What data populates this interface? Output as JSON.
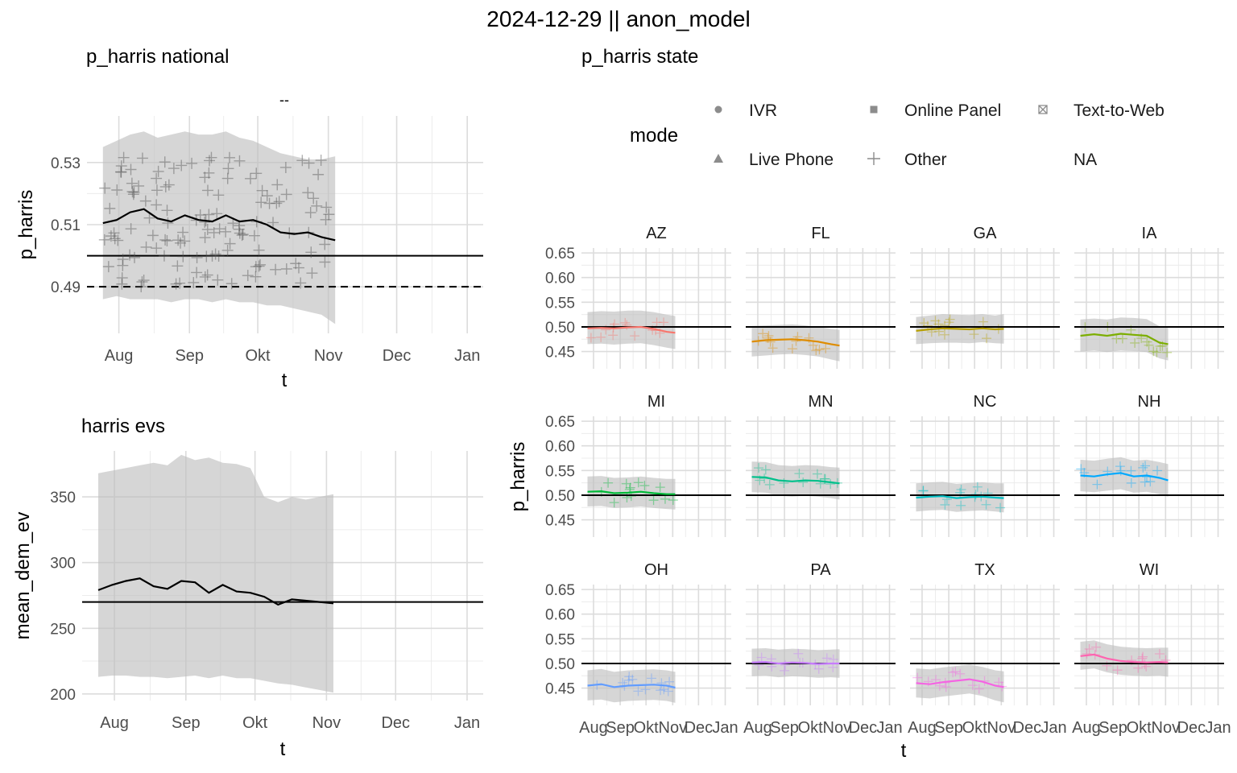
{
  "title": "2024-12-29 || anon_model",
  "national": {
    "title": "p_harris national",
    "facet_label": "--",
    "xlabel": "t",
    "ylabel": "p_harris",
    "x_ticks": [
      "Aug",
      "Sep",
      "Okt",
      "Nov",
      "Dec",
      "Jan"
    ],
    "y_ticks": [
      "0.49",
      "0.51",
      "0.53"
    ]
  },
  "evs": {
    "title": "harris evs",
    "xlabel": "t",
    "ylabel": "mean_dem_ev",
    "x_ticks": [
      "Aug",
      "Sep",
      "Okt",
      "Nov",
      "Dec",
      "Jan"
    ],
    "y_ticks": [
      "200",
      "250",
      "300",
      "350"
    ]
  },
  "state": {
    "title": "p_harris state",
    "xlabel": "t",
    "ylabel": "p_harris",
    "x_ticks": [
      "Aug",
      "Sep",
      "Okt",
      "Nov",
      "Dec",
      "Jan"
    ],
    "y_ticks": [
      "0.45",
      "0.50",
      "0.55",
      "0.60",
      "0.65"
    ]
  },
  "legend": {
    "title": "mode",
    "items": [
      {
        "label": "IVR",
        "shape": "circle"
      },
      {
        "label": "Online Panel",
        "shape": "square"
      },
      {
        "label": "Text-to-Web",
        "shape": "boxx"
      },
      {
        "label": "Live Phone",
        "shape": "triangle"
      },
      {
        "label": "Other",
        "shape": "plus"
      },
      {
        "label": "NA",
        "shape": "none"
      }
    ]
  },
  "chart_data": [
    {
      "type": "line",
      "id": "national",
      "x_dates": [
        "2024-07-25",
        "2024-07-31",
        "2024-08-06",
        "2024-08-12",
        "2024-08-18",
        "2024-08-24",
        "2024-08-30",
        "2024-09-05",
        "2024-09-11",
        "2024-09-17",
        "2024-09-23",
        "2024-09-29",
        "2024-10-05",
        "2024-10-11",
        "2024-10-17",
        "2024-10-23",
        "2024-10-29",
        "2024-11-04"
      ],
      "series": [
        {
          "values": [
            0.5105,
            0.5115,
            0.514,
            0.515,
            0.512,
            0.511,
            0.513,
            0.5115,
            0.511,
            0.513,
            0.511,
            0.5115,
            0.51,
            0.5075,
            0.507,
            0.5075,
            0.506,
            0.505
          ]
        }
      ],
      "ribbon_lower": [
        0.486,
        0.487,
        0.486,
        0.486,
        0.486,
        0.485,
        0.486,
        0.486,
        0.485,
        0.486,
        0.485,
        0.485,
        0.484,
        0.484,
        0.483,
        0.482,
        0.481,
        0.478
      ],
      "ribbon_upper": [
        0.535,
        0.537,
        0.539,
        0.54,
        0.538,
        0.539,
        0.54,
        0.539,
        0.539,
        0.54,
        0.538,
        0.537,
        0.535,
        0.533,
        0.532,
        0.531,
        0.531,
        0.532
      ],
      "hlines": [
        {
          "y": 0.5,
          "style": "solid"
        },
        {
          "y": 0.49,
          "style": "dashed"
        }
      ],
      "xlim": [
        "2024-07-18",
        "2025-01-08"
      ],
      "ylim": [
        0.475,
        0.545
      ]
    },
    {
      "type": "line",
      "id": "evs",
      "x_dates": [
        "2024-07-25",
        "2024-07-31",
        "2024-08-06",
        "2024-08-12",
        "2024-08-18",
        "2024-08-24",
        "2024-08-30",
        "2024-09-05",
        "2024-09-11",
        "2024-09-17",
        "2024-09-23",
        "2024-09-29",
        "2024-10-05",
        "2024-10-11",
        "2024-10-17",
        "2024-10-23",
        "2024-10-29",
        "2024-11-04"
      ],
      "series": [
        {
          "values": [
            279,
            283,
            286,
            288,
            282,
            280,
            286,
            285,
            277,
            283,
            278,
            277,
            274,
            268,
            272,
            271,
            270,
            269
          ]
        }
      ],
      "ribbon_lower": [
        213,
        214,
        214,
        213,
        213,
        212,
        213,
        214,
        212,
        214,
        212,
        212,
        210,
        208,
        207,
        205,
        203,
        201
      ],
      "ribbon_upper": [
        368,
        370,
        372,
        374,
        376,
        374,
        382,
        378,
        380,
        376,
        375,
        372,
        350,
        346,
        350,
        348,
        350,
        352
      ],
      "hlines": [
        {
          "y": 270,
          "style": "solid"
        }
      ],
      "xlim": [
        "2024-07-18",
        "2025-01-08"
      ],
      "ylim": [
        195,
        385
      ]
    },
    {
      "type": "line",
      "id": "state",
      "facets": [
        {
          "state": "AZ",
          "color": "#F8766D",
          "x_dates": [
            "2024-07-25",
            "2024-08-10",
            "2024-08-25",
            "2024-09-10",
            "2024-09-25",
            "2024-10-10",
            "2024-10-25",
            "2024-11-04"
          ],
          "values": [
            0.497,
            0.498,
            0.497,
            0.499,
            0.5,
            0.496,
            0.49,
            0.488
          ],
          "lower": [
            0.465,
            0.466,
            0.464,
            0.466,
            0.467,
            0.463,
            0.458,
            0.455
          ],
          "upper": [
            0.53,
            0.532,
            0.531,
            0.533,
            0.533,
            0.53,
            0.525,
            0.522
          ]
        },
        {
          "state": "FL",
          "color": "#DE8C00",
          "x_dates": [
            "2024-07-25",
            "2024-08-10",
            "2024-08-25",
            "2024-09-10",
            "2024-09-25",
            "2024-10-10",
            "2024-10-25",
            "2024-11-04"
          ],
          "values": [
            0.47,
            0.473,
            0.474,
            0.475,
            0.473,
            0.47,
            0.465,
            0.462
          ],
          "lower": [
            0.44,
            0.442,
            0.444,
            0.445,
            0.443,
            0.44,
            0.434,
            0.43
          ],
          "upper": [
            0.502,
            0.503,
            0.504,
            0.505,
            0.503,
            0.5,
            0.496,
            0.494
          ]
        },
        {
          "state": "GA",
          "color": "#B79F00",
          "x_dates": [
            "2024-07-25",
            "2024-08-10",
            "2024-08-25",
            "2024-09-10",
            "2024-09-25",
            "2024-10-10",
            "2024-10-25",
            "2024-11-04"
          ],
          "values": [
            0.492,
            0.495,
            0.497,
            0.496,
            0.495,
            0.497,
            0.495,
            0.496
          ],
          "lower": [
            0.465,
            0.467,
            0.468,
            0.468,
            0.467,
            0.469,
            0.467,
            0.466
          ],
          "upper": [
            0.52,
            0.523,
            0.526,
            0.525,
            0.524,
            0.526,
            0.523,
            0.526
          ]
        },
        {
          "state": "IA",
          "color": "#7CAE00",
          "x_dates": [
            "2024-07-25",
            "2024-08-10",
            "2024-08-25",
            "2024-09-10",
            "2024-09-25",
            "2024-10-10",
            "2024-10-25",
            "2024-11-04"
          ],
          "values": [
            0.482,
            0.485,
            0.482,
            0.486,
            0.484,
            0.482,
            0.468,
            0.465
          ],
          "lower": [
            0.45,
            0.452,
            0.449,
            0.452,
            0.451,
            0.449,
            0.436,
            0.432
          ],
          "upper": [
            0.515,
            0.517,
            0.515,
            0.519,
            0.518,
            0.516,
            0.501,
            0.498
          ]
        },
        {
          "state": "MI",
          "color": "#00BA38",
          "x_dates": [
            "2024-07-25",
            "2024-08-10",
            "2024-08-25",
            "2024-09-10",
            "2024-09-25",
            "2024-10-10",
            "2024-10-25",
            "2024-11-04"
          ],
          "values": [
            0.507,
            0.508,
            0.504,
            0.505,
            0.507,
            0.504,
            0.502,
            0.502
          ],
          "lower": [
            0.477,
            0.478,
            0.474,
            0.475,
            0.477,
            0.474,
            0.472,
            0.471
          ],
          "upper": [
            0.538,
            0.539,
            0.535,
            0.536,
            0.538,
            0.535,
            0.533,
            0.533
          ]
        },
        {
          "state": "MN",
          "color": "#00C08B",
          "x_dates": [
            "2024-07-25",
            "2024-08-10",
            "2024-08-25",
            "2024-09-10",
            "2024-09-25",
            "2024-10-10",
            "2024-10-25",
            "2024-11-04"
          ],
          "values": [
            0.537,
            0.536,
            0.53,
            0.528,
            0.53,
            0.529,
            0.526,
            0.524
          ],
          "lower": [
            0.506,
            0.505,
            0.499,
            0.497,
            0.499,
            0.497,
            0.494,
            0.491
          ],
          "upper": [
            0.568,
            0.567,
            0.561,
            0.559,
            0.561,
            0.56,
            0.557,
            0.556
          ]
        },
        {
          "state": "NC",
          "color": "#00BFC4",
          "x_dates": [
            "2024-07-25",
            "2024-08-10",
            "2024-08-25",
            "2024-09-10",
            "2024-09-25",
            "2024-10-10",
            "2024-10-25",
            "2024-11-04"
          ],
          "values": [
            0.495,
            0.497,
            0.498,
            0.494,
            0.496,
            0.497,
            0.495,
            0.494
          ],
          "lower": [
            0.467,
            0.469,
            0.47,
            0.466,
            0.468,
            0.469,
            0.467,
            0.465
          ],
          "upper": [
            0.524,
            0.526,
            0.527,
            0.523,
            0.525,
            0.526,
            0.524,
            0.524
          ]
        },
        {
          "state": "NH",
          "color": "#00A9FF",
          "x_dates": [
            "2024-07-25",
            "2024-08-10",
            "2024-08-25",
            "2024-09-10",
            "2024-09-25",
            "2024-10-10",
            "2024-10-25",
            "2024-11-04"
          ],
          "values": [
            0.54,
            0.538,
            0.542,
            0.545,
            0.538,
            0.54,
            0.535,
            0.53
          ],
          "lower": [
            0.508,
            0.506,
            0.509,
            0.512,
            0.505,
            0.507,
            0.502,
            0.497
          ],
          "upper": [
            0.572,
            0.57,
            0.574,
            0.577,
            0.57,
            0.572,
            0.567,
            0.563
          ]
        },
        {
          "state": "OH",
          "color": "#619CFF",
          "x_dates": [
            "2024-07-25",
            "2024-08-10",
            "2024-08-25",
            "2024-09-10",
            "2024-09-25",
            "2024-10-10",
            "2024-10-25",
            "2024-11-04"
          ],
          "values": [
            0.455,
            0.458,
            0.452,
            0.455,
            0.456,
            0.457,
            0.455,
            0.451
          ],
          "lower": [
            0.425,
            0.427,
            0.421,
            0.424,
            0.425,
            0.426,
            0.424,
            0.42
          ],
          "upper": [
            0.486,
            0.489,
            0.483,
            0.486,
            0.487,
            0.488,
            0.486,
            0.483
          ]
        },
        {
          "state": "PA",
          "color": "#C77CFF",
          "x_dates": [
            "2024-07-25",
            "2024-08-10",
            "2024-08-25",
            "2024-09-10",
            "2024-09-25",
            "2024-10-10",
            "2024-10-25",
            "2024-11-04"
          ],
          "values": [
            0.502,
            0.503,
            0.5,
            0.502,
            0.501,
            0.499,
            0.5,
            0.5
          ],
          "lower": [
            0.474,
            0.475,
            0.472,
            0.474,
            0.473,
            0.471,
            0.472,
            0.471
          ],
          "upper": [
            0.53,
            0.531,
            0.528,
            0.53,
            0.529,
            0.527,
            0.528,
            0.529
          ]
        },
        {
          "state": "TX",
          "color": "#F564E3",
          "x_dates": [
            "2024-07-25",
            "2024-08-10",
            "2024-08-25",
            "2024-09-10",
            "2024-09-25",
            "2024-10-10",
            "2024-10-25",
            "2024-11-04"
          ],
          "values": [
            0.46,
            0.458,
            0.462,
            0.465,
            0.468,
            0.463,
            0.455,
            0.452
          ],
          "lower": [
            0.431,
            0.429,
            0.433,
            0.436,
            0.439,
            0.434,
            0.425,
            0.421
          ],
          "upper": [
            0.49,
            0.488,
            0.492,
            0.495,
            0.498,
            0.493,
            0.486,
            0.484
          ]
        },
        {
          "state": "WI",
          "color": "#FF64B0",
          "x_dates": [
            "2024-07-25",
            "2024-08-10",
            "2024-08-25",
            "2024-09-10",
            "2024-09-25",
            "2024-10-10",
            "2024-10-25",
            "2024-11-04"
          ],
          "values": [
            0.515,
            0.518,
            0.51,
            0.505,
            0.503,
            0.502,
            0.503,
            0.502
          ],
          "lower": [
            0.487,
            0.49,
            0.482,
            0.477,
            0.475,
            0.474,
            0.475,
            0.473
          ],
          "upper": [
            0.544,
            0.547,
            0.539,
            0.534,
            0.532,
            0.531,
            0.532,
            0.532
          ]
        }
      ],
      "hlines": [
        {
          "y": 0.5,
          "style": "solid"
        }
      ],
      "xlim": [
        "2024-07-18",
        "2025-01-08"
      ],
      "ylim": [
        0.415,
        0.66
      ]
    }
  ]
}
